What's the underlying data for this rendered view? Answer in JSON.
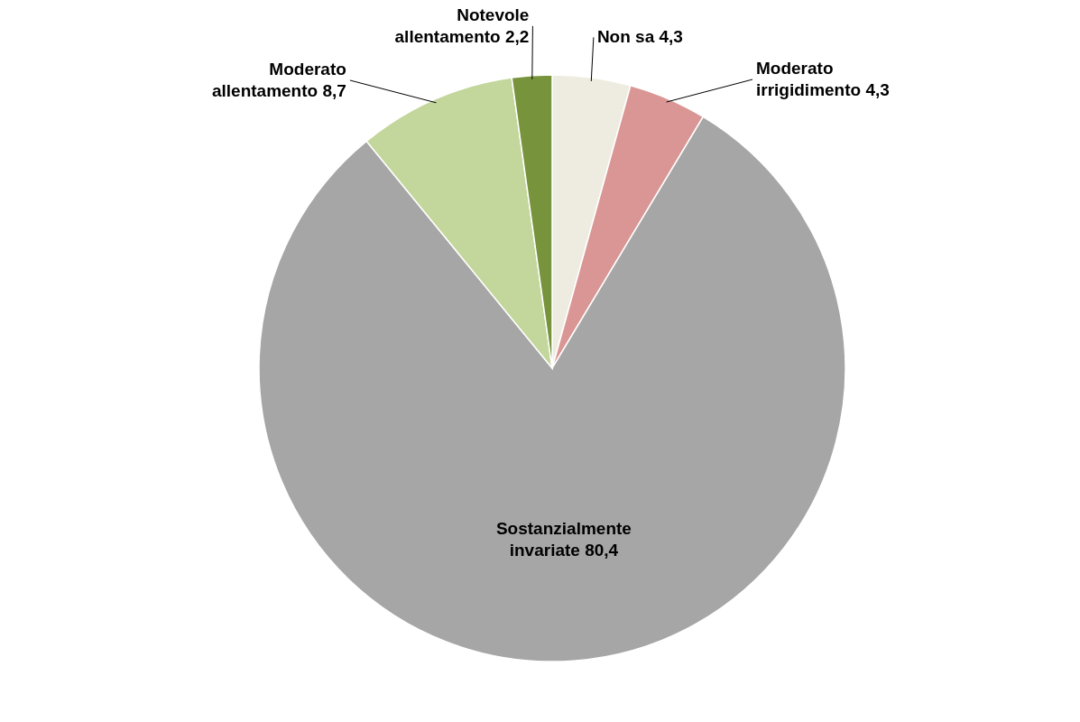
{
  "chart_data": {
    "type": "pie",
    "categories": [
      "Non sa",
      "Moderato irrigidimento",
      "Sostanzialmente invariate",
      "Moderato allentamento",
      "Notevole allentamento"
    ],
    "values": [
      4.3,
      4.3,
      80.4,
      8.7,
      2.2
    ],
    "value_labels": [
      "4,3",
      "4,3",
      "80,4",
      "8,7",
      "2,2"
    ],
    "colors": [
      "#eeece1",
      "#d99694",
      "#a6a6a6",
      "#c3d69b",
      "#77933c"
    ]
  }
}
